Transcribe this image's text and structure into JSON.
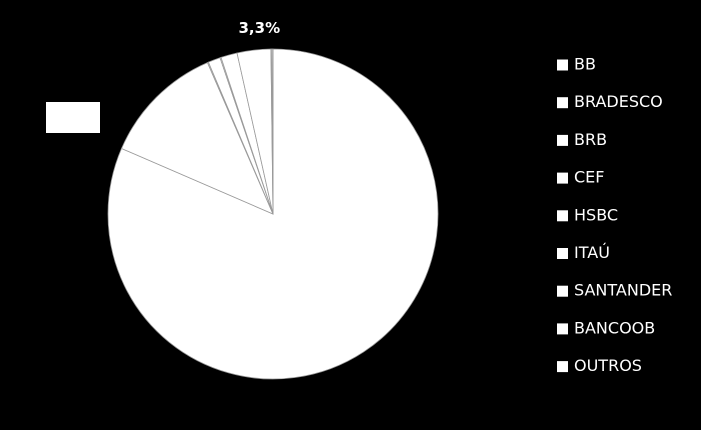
{
  "chart_data": {
    "type": "pie",
    "categories": [
      "BB",
      "BRADESCO",
      "BRB",
      "CEF",
      "HSBC",
      "ITAÚ",
      "SANTANDER",
      "BANCOOB",
      "OUTROS"
    ],
    "values": [
      81.5,
      12.0,
      0.1,
      1.2,
      0.1,
      1.6,
      3.3,
      0.1,
      0.1
    ],
    "value_labels": [
      null,
      null,
      null,
      null,
      null,
      null,
      "3,3%",
      null,
      null
    ],
    "colors": [
      "#ffffff",
      "#ffffff",
      "#ffffff",
      "#ffffff",
      "#ffffff",
      "#ffffff",
      "#ffffff",
      "#ffffff",
      "#ffffff"
    ],
    "legend": "right"
  }
}
